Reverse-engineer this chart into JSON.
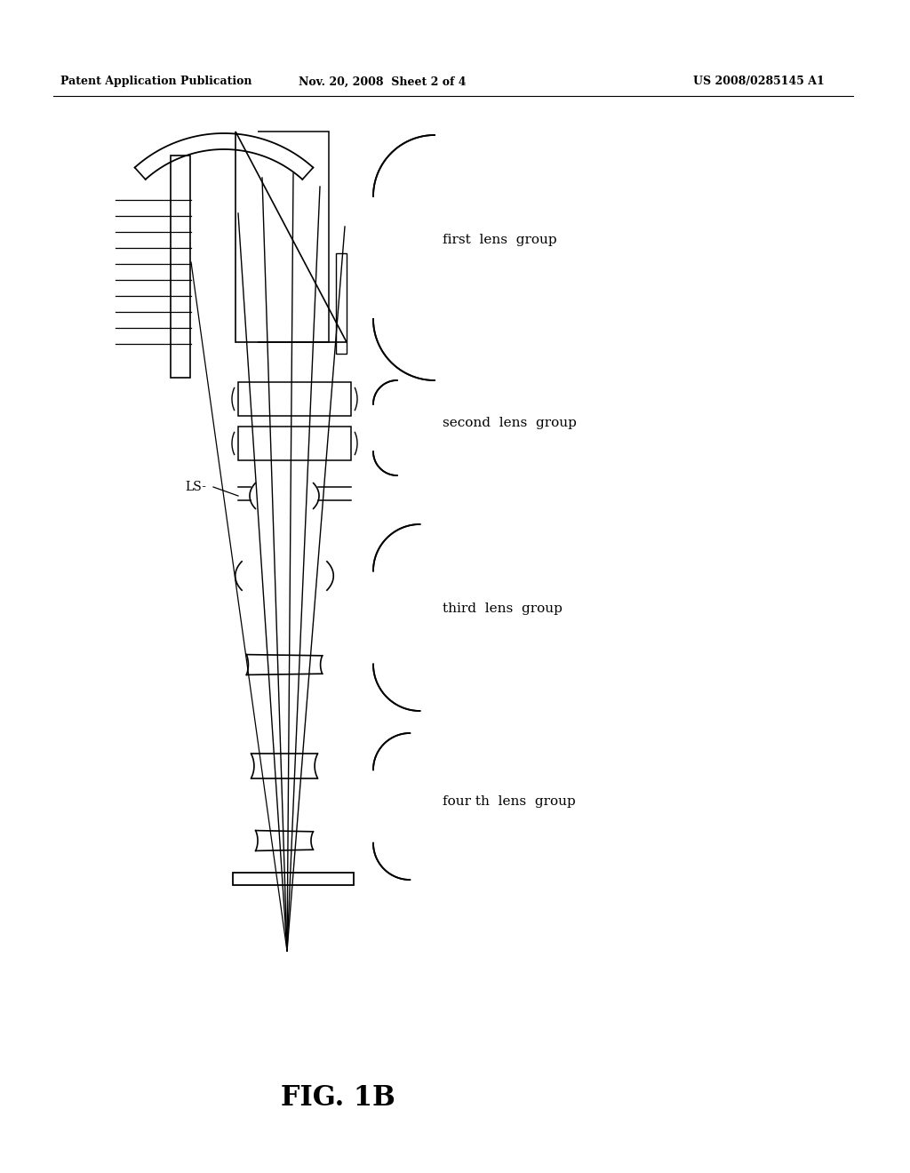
{
  "title": "FIG. 1B",
  "header_left": "Patent Application Publication",
  "header_mid": "Nov. 20, 2008  Sheet 2 of 4",
  "header_right": "US 2008/0285145 A1",
  "labels": {
    "first_lens_group": "first  lens  group",
    "second_lens_group": "second  lens  group",
    "third_lens_group": "third  lens  group",
    "fourth_lens_group": "four th  lens  group",
    "LS": "LS-"
  },
  "bg_color": "#ffffff",
  "line_color": "#000000",
  "gray_color": "#888888"
}
